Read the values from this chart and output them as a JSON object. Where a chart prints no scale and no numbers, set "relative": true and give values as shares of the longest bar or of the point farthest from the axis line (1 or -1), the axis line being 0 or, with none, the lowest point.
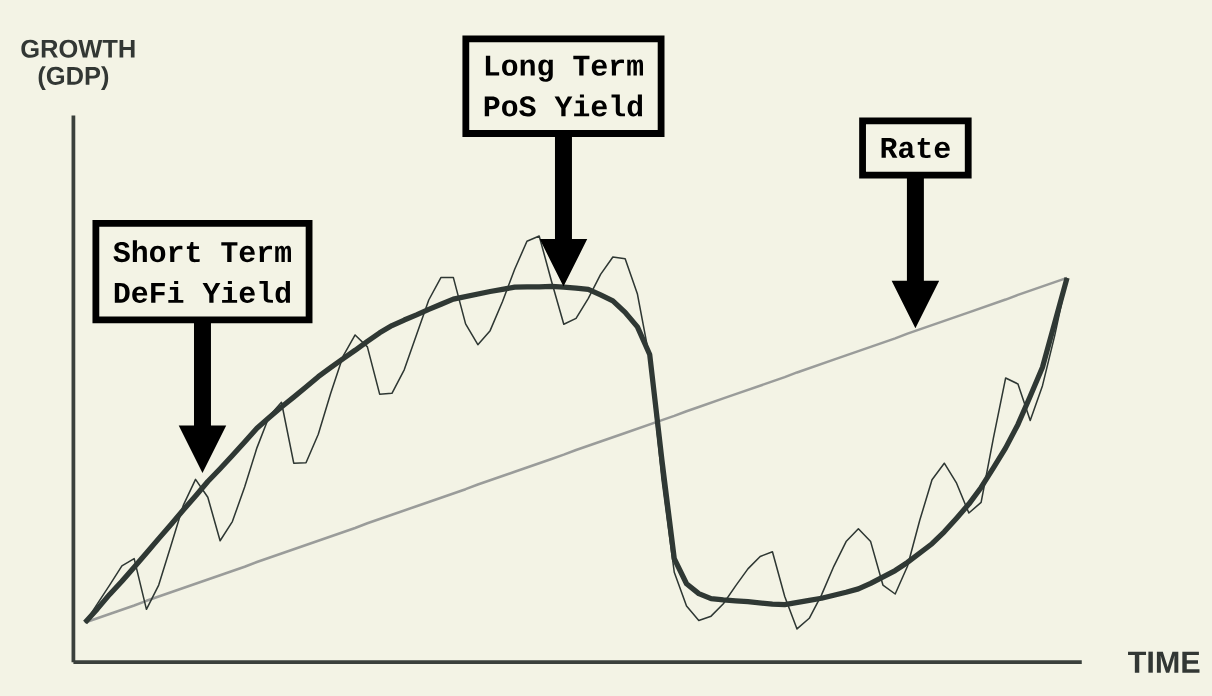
{
  "chart_data": {
    "type": "line",
    "xlabel": "TIME",
    "relative": true,
    "categories": [
      null,
      null,
      null,
      null,
      null,
      null,
      null,
      null,
      null,
      null,
      null,
      null,
      null,
      null,
      null,
      null,
      null,
      null,
      null,
      null,
      null,
      null,
      null,
      null,
      null,
      null,
      null,
      null,
      null,
      null,
      null,
      null,
      null,
      null,
      null,
      null,
      null,
      null,
      null,
      null,
      null,
      null,
      null,
      null,
      null,
      null,
      null,
      null,
      null,
      null,
      null,
      null,
      null,
      null,
      null,
      null,
      null,
      null,
      null,
      null,
      null,
      null,
      null,
      null,
      null,
      null,
      null,
      null,
      null,
      null,
      null,
      null,
      null,
      null,
      null,
      null,
      null,
      null,
      null,
      null,
      null
    ],
    "series": [
      {
        "color": "#9a9c9a",
        "values": [
          0.093,
          0.103,
          0.113,
          0.123,
          0.133,
          0.144,
          0.154,
          0.164,
          0.174,
          0.184,
          0.194,
          0.204,
          0.214,
          0.224,
          0.235,
          0.245,
          0.255,
          0.265,
          0.275,
          0.285,
          0.295,
          0.305,
          0.315,
          0.326,
          0.336,
          0.346,
          0.356,
          0.366,
          0.376,
          0.386,
          0.396,
          0.406,
          0.417,
          0.427,
          0.437,
          0.447,
          0.457,
          0.467,
          0.477,
          0.487,
          0.498,
          0.508,
          0.518,
          0.528,
          0.538,
          0.548,
          0.558,
          0.568,
          0.578,
          0.589,
          0.599,
          0.609,
          0.619,
          0.629,
          0.639,
          0.649,
          0.659,
          0.669,
          0.68,
          0.69,
          0.7,
          0.71,
          0.72,
          0.73,
          0.74,
          0.75,
          0.76,
          0.771,
          0.781,
          0.791,
          0.801,
          0.811,
          0.821,
          0.831,
          0.841,
          0.851,
          0.862,
          0.872,
          0.882,
          0.892,
          0.902
        ]
      },
      {
        "color": "#2e3733",
        "values": [
          0.093,
          0.137,
          0.181,
          0.226,
          0.243,
          0.124,
          0.181,
          0.274,
          0.368,
          0.429,
          0.387,
          0.285,
          0.33,
          0.411,
          0.503,
          0.577,
          0.61,
          0.467,
          0.468,
          0.535,
          0.63,
          0.717,
          0.768,
          0.74,
          0.629,
          0.631,
          0.686,
          0.768,
          0.85,
          0.903,
          0.903,
          0.794,
          0.745,
          0.778,
          0.846,
          0.922,
          0.988,
          1.0,
          0.894,
          0.793,
          0.807,
          0.854,
          0.91,
          0.951,
          0.947,
          0.864,
          0.712,
          0.429,
          0.211,
          0.132,
          0.098,
          0.108,
          0.137,
          0.179,
          0.219,
          0.248,
          0.259,
          0.154,
          0.078,
          0.103,
          0.158,
          0.225,
          0.283,
          0.313,
          0.283,
          0.181,
          0.16,
          0.225,
          0.333,
          0.428,
          0.467,
          0.42,
          0.35,
          0.375,
          0.526,
          0.667,
          0.653,
          0.567,
          0.649,
          0.767,
          0.902
        ]
      },
      {
        "color": "#2f3834",
        "values": [
          0.093,
          0.125,
          0.159,
          0.19,
          0.223,
          0.256,
          0.29,
          0.323,
          0.357,
          0.39,
          0.424,
          0.454,
          0.485,
          0.517,
          0.549,
          0.574,
          0.599,
          0.622,
          0.646,
          0.67,
          0.691,
          0.712,
          0.732,
          0.753,
          0.773,
          0.79,
          0.803,
          0.815,
          0.828,
          0.84,
          0.852,
          0.858,
          0.864,
          0.87,
          0.875,
          0.88,
          0.881,
          0.881,
          0.882,
          0.88,
          0.878,
          0.875,
          0.862,
          0.848,
          0.821,
          0.787,
          0.722,
          0.473,
          0.243,
          0.184,
          0.161,
          0.149,
          0.146,
          0.144,
          0.142,
          0.139,
          0.136,
          0.135,
          0.14,
          0.145,
          0.15,
          0.157,
          0.164,
          0.172,
          0.185,
          0.2,
          0.215,
          0.234,
          0.256,
          0.278,
          0.306,
          0.338,
          0.371,
          0.41,
          0.456,
          0.503,
          0.558,
          0.624,
          0.692,
          0.797,
          0.902
        ]
      }
    ],
    "annotations": [
      "GROWTH (GDP)",
      "Short Term DeFi Yield",
      "Long Term PoS Yield",
      "Rate"
    ]
  }
}
